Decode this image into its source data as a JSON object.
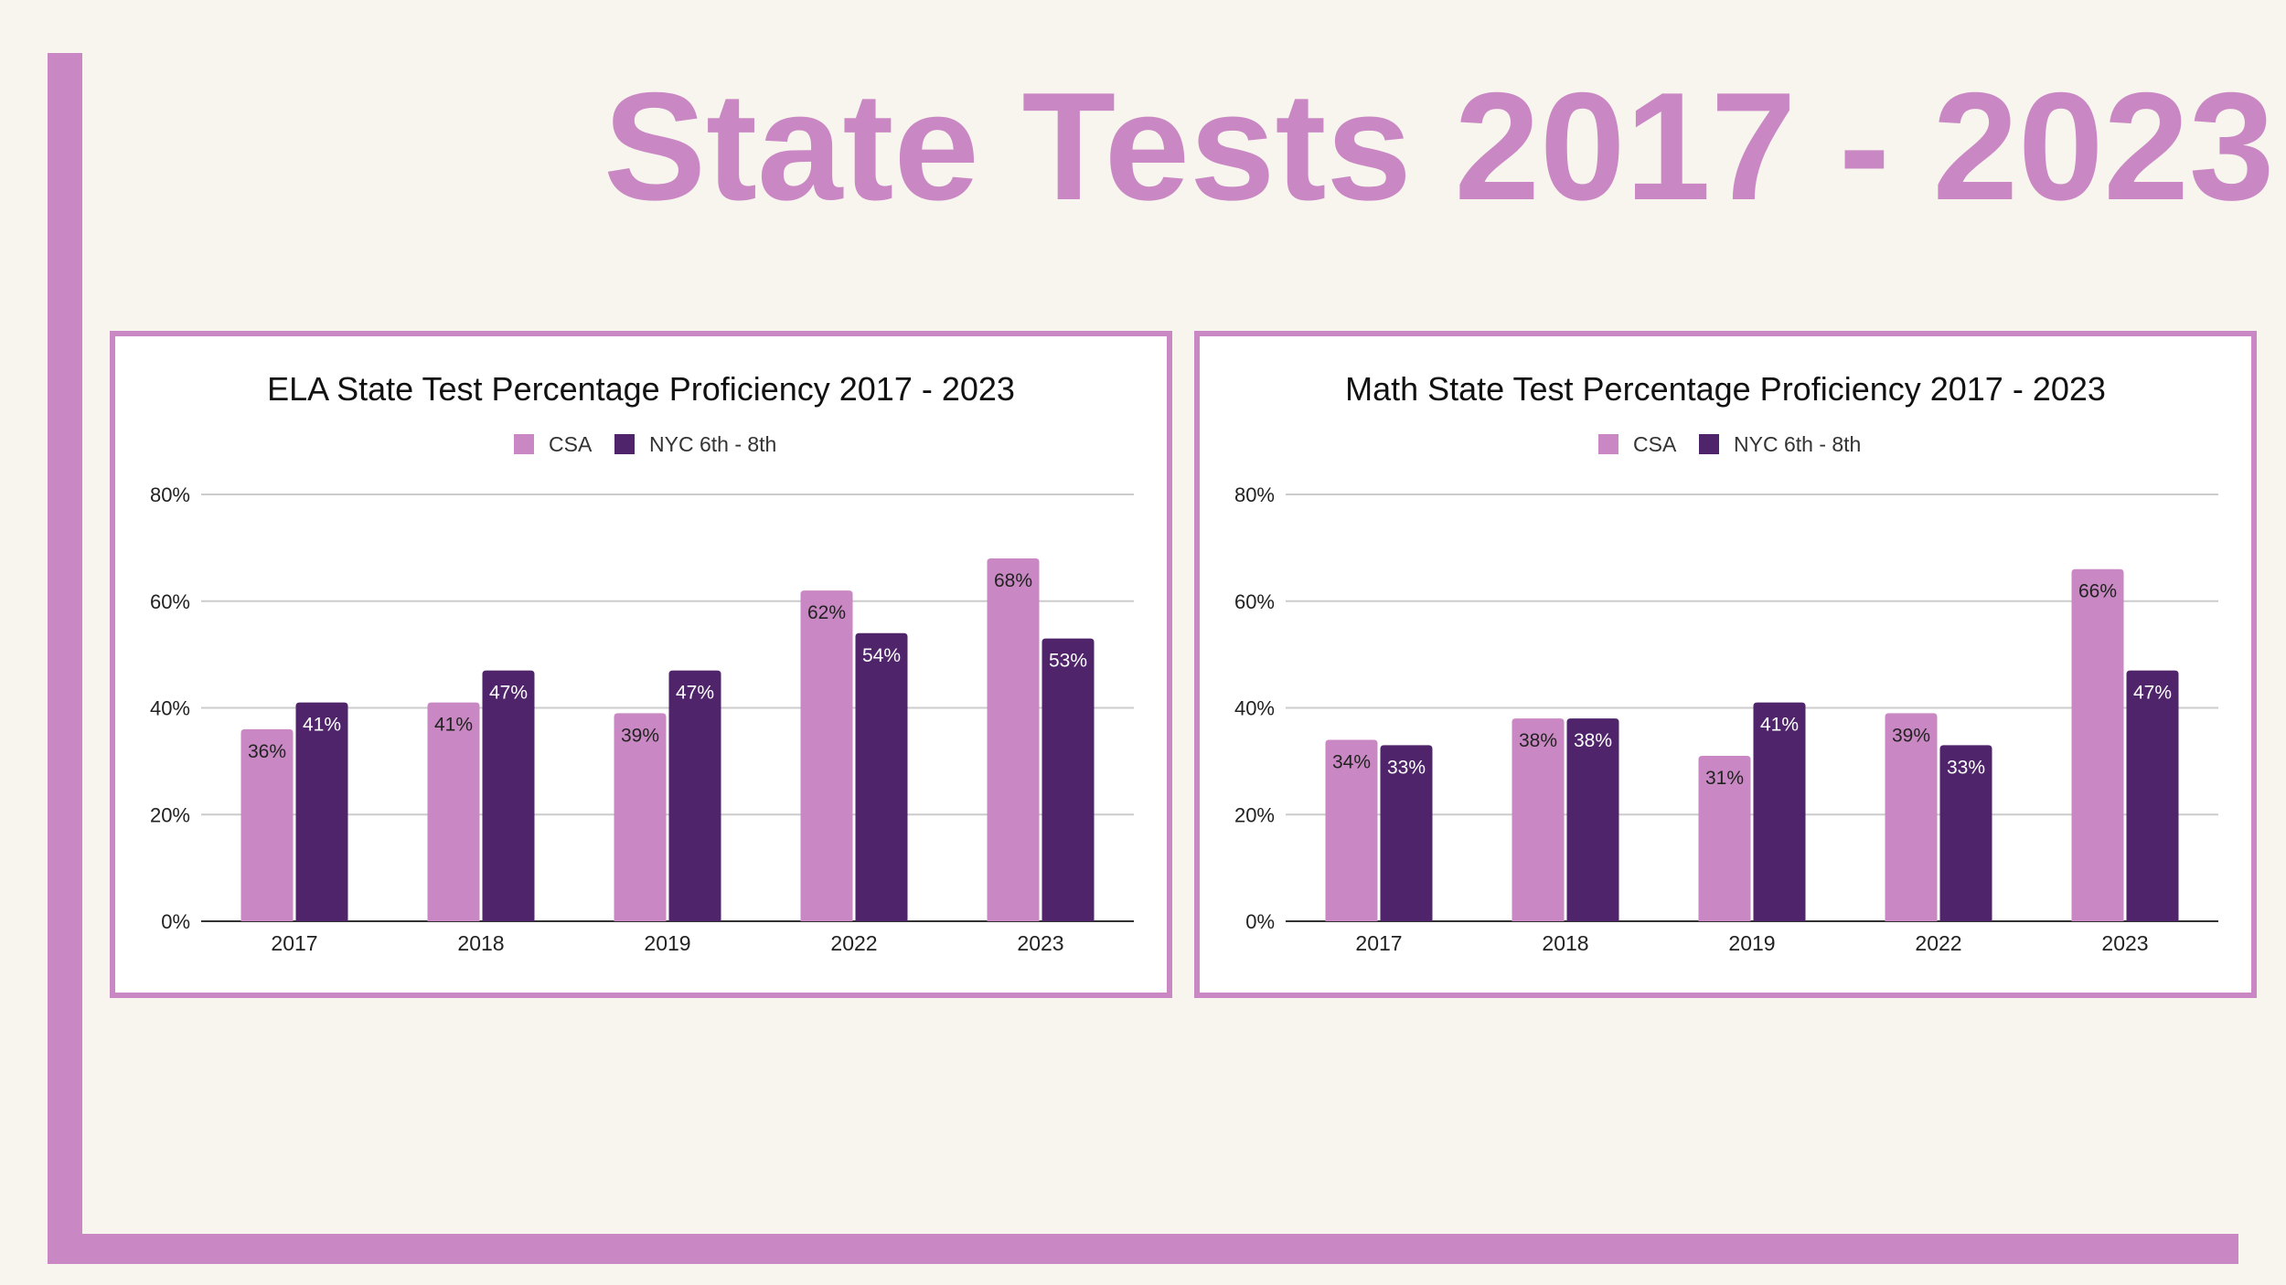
{
  "page": {
    "title": "State Tests 2017 - 2023"
  },
  "colors": {
    "background": "#f8f4ee",
    "accent": "#c988c3",
    "csa": "#c988c3",
    "nyc": "#4f246b",
    "gridline": "#cccccc",
    "axis": "#333333"
  },
  "chart_data": [
    {
      "type": "bar",
      "title": "ELA State Test Percentage Proficiency 2017 - 2023",
      "categories": [
        "2017",
        "2018",
        "2019",
        "2022",
        "2023"
      ],
      "series": [
        {
          "name": "CSA",
          "values": [
            36,
            41,
            39,
            62,
            68
          ],
          "labels": [
            "36%",
            "41%",
            "39%",
            "62%",
            "68%"
          ]
        },
        {
          "name": "NYC 6th - 8th",
          "values": [
            41,
            47,
            47,
            54,
            53
          ],
          "labels": [
            "41%",
            "47%",
            "47%",
            "54%",
            "53%"
          ]
        }
      ],
      "ylim": [
        0,
        80
      ],
      "yticks": [
        "0%",
        "20%",
        "40%",
        "60%",
        "80%"
      ],
      "legend": "top",
      "grid": true
    },
    {
      "type": "bar",
      "title": "Math State Test Percentage Proficiency 2017 - 2023",
      "categories": [
        "2017",
        "2018",
        "2019",
        "2022",
        "2023"
      ],
      "series": [
        {
          "name": "CSA",
          "values": [
            34,
            38,
            31,
            39,
            66
          ],
          "labels": [
            "34%",
            "38%",
            "31%",
            "39%",
            "66%"
          ]
        },
        {
          "name": "NYC 6th - 8th",
          "values": [
            33,
            38,
            41,
            33,
            47
          ],
          "labels": [
            "33%",
            "38%",
            "41%",
            "33%",
            "47%"
          ]
        }
      ],
      "ylim": [
        0,
        80
      ],
      "yticks": [
        "0%",
        "20%",
        "40%",
        "60%",
        "80%"
      ],
      "legend": "top",
      "grid": true
    }
  ]
}
